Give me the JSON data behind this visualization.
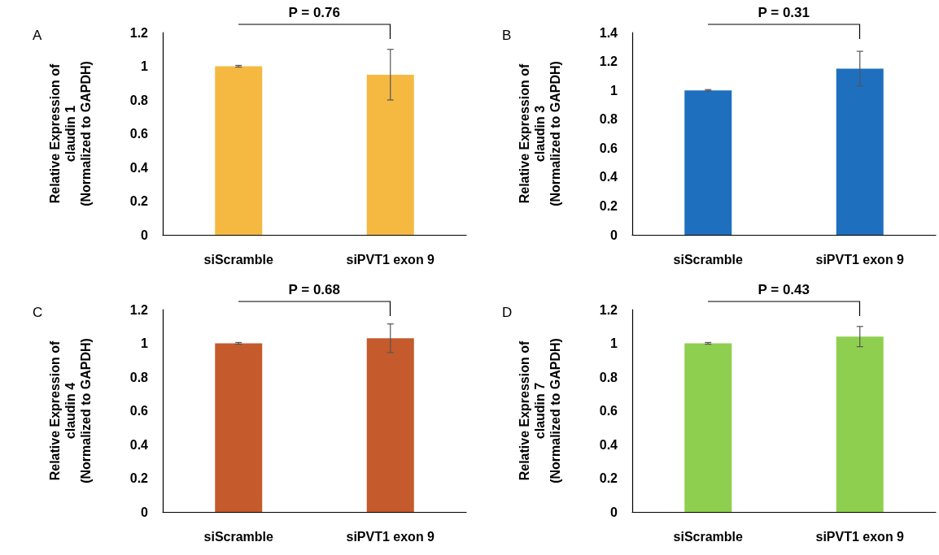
{
  "chart_data": [
    {
      "type": "bar",
      "ylabel": "Relative Expression of\nclaudin 1\n(Normalized to GAPDH)",
      "categories": [
        "siScramble",
        "siPVT1 exon 9"
      ],
      "values": [
        1.0,
        0.95
      ],
      "errors": [
        0.005,
        0.15
      ],
      "color": "#f5b942",
      "ylim": [
        0,
        1.2
      ],
      "yticks": [
        0,
        0.2,
        0.4,
        0.6,
        0.8,
        1,
        1.2
      ],
      "grid": false,
      "annotations": [
        "A",
        "P = 0.76"
      ]
    },
    {
      "type": "bar",
      "ylabel": "Relative Expression of\nclaudin 3\n(Normalized to GAPDH)",
      "categories": [
        "siScramble",
        "siPVT1 exon 9"
      ],
      "values": [
        1.0,
        1.15
      ],
      "errors": [
        0.005,
        0.12
      ],
      "color": "#1f6fbf",
      "ylim": [
        0,
        1.4
      ],
      "yticks": [
        0,
        0.2,
        0.4,
        0.6,
        0.8,
        1,
        1.2,
        1.4
      ],
      "grid": false,
      "annotations": [
        "B",
        "P = 0.31"
      ]
    },
    {
      "type": "bar",
      "ylabel": "Relative Expression of\nclaudin 4\n(Normalized to GAPDH)",
      "categories": [
        "siScramble",
        "siPVT1 exon 9"
      ],
      "values": [
        1.0,
        1.03
      ],
      "errors": [
        0.005,
        0.085
      ],
      "color": "#c55a2c",
      "ylim": [
        0,
        1.2
      ],
      "yticks": [
        0,
        0.2,
        0.4,
        0.6,
        0.8,
        1,
        1.2
      ],
      "grid": false,
      "annotations": [
        "C",
        "P = 0.68"
      ]
    },
    {
      "type": "bar",
      "ylabel": "Relative Expression of\nclaudin 7\n(Normalized to GAPDH)",
      "categories": [
        "siScramble",
        "siPVT1 exon 9"
      ],
      "values": [
        1.0,
        1.04
      ],
      "errors": [
        0.005,
        0.06
      ],
      "color": "#8fcf4f",
      "ylim": [
        0,
        1.2
      ],
      "yticks": [
        0,
        0.2,
        0.4,
        0.6,
        0.8,
        1,
        1.2
      ],
      "grid": false,
      "annotations": [
        "D",
        "P = 0.43"
      ]
    }
  ]
}
